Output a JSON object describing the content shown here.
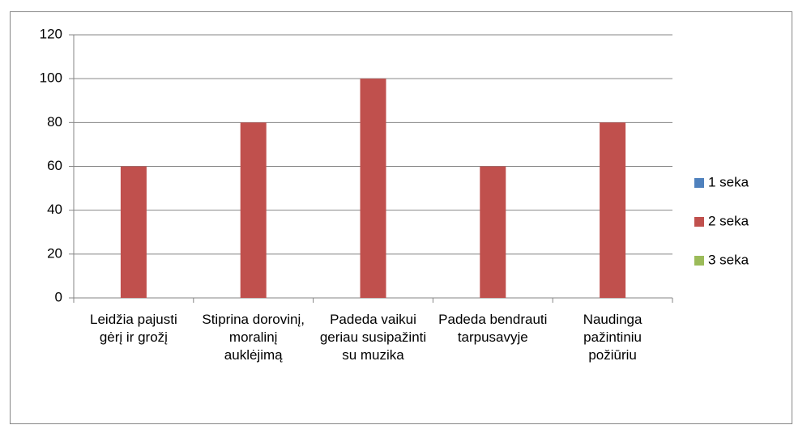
{
  "chart_data": {
    "type": "bar",
    "categories": [
      "Leidžia pajusti gėrį ir grožį",
      "Stiprina dorovinį, moralinį auklėjimą",
      "Padeda vaikui geriau susipažinti su muzika",
      "Padeda bendrauti tarpusavyje",
      "Naudinga pažintiniu požiūriu"
    ],
    "series": [
      {
        "name": "1 seka",
        "color": "#4f81bd",
        "values": [
          0,
          0,
          0,
          0,
          0
        ]
      },
      {
        "name": "2 seka",
        "color": "#c0504d",
        "values": [
          60,
          80,
          100,
          60,
          80
        ]
      },
      {
        "name": "3 seka",
        "color": "#9bbb59",
        "values": [
          0,
          0,
          0,
          0,
          0
        ]
      }
    ],
    "ylim": [
      0,
      120
    ],
    "yticks": [
      0,
      20,
      40,
      60,
      80,
      100,
      120
    ],
    "grid": true,
    "legend": "right"
  }
}
